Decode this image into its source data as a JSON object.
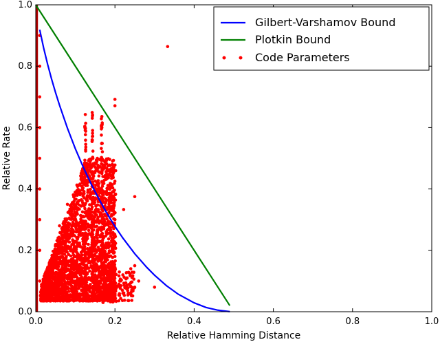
{
  "chart_data": {
    "type": "line",
    "xlabel": "Relative Hamming Distance",
    "ylabel": "Relative Rate",
    "xlim": [
      0.0,
      1.0
    ],
    "ylim": [
      0.0,
      1.0
    ],
    "x_ticks": [
      "0.0",
      "0.2",
      "0.4",
      "0.6",
      "0.8",
      "1.0"
    ],
    "y_ticks": [
      "0.0",
      "0.2",
      "0.4",
      "0.6",
      "0.8",
      "1.0"
    ],
    "grid": false,
    "legend_position": "top-right",
    "colors": {
      "gv": "#0000ff",
      "plotkin": "#007f00",
      "code": "#ff0000"
    },
    "series": [
      {
        "name": "Gilbert-Varshamov Bound",
        "style": "line",
        "x": [
          0.01,
          0.02,
          0.03,
          0.04,
          0.05,
          0.06,
          0.08,
          0.1,
          0.12,
          0.14,
          0.16,
          0.18,
          0.2,
          0.22,
          0.25,
          0.28,
          0.3,
          0.33,
          0.36,
          0.4,
          0.43,
          0.46,
          0.49
        ],
        "y": [
          0.919,
          0.859,
          0.806,
          0.758,
          0.714,
          0.673,
          0.598,
          0.531,
          0.471,
          0.416,
          0.366,
          0.32,
          0.278,
          0.24,
          0.189,
          0.145,
          0.119,
          0.085,
          0.057,
          0.029,
          0.014,
          0.005,
          0.0003
        ]
      },
      {
        "name": "Plotkin Bound",
        "style": "line",
        "x": [
          0.0,
          0.49
        ],
        "y": [
          1.0,
          0.02
        ]
      },
      {
        "name": "Code Parameters",
        "style": "scatter",
        "x": [
          0.333,
          0.2,
          0.2,
          0.167,
          0.167,
          0.143,
          0.143,
          0.125,
          0.125,
          0.25,
          0.222,
          0.3,
          0.25,
          0.2,
          0.18,
          0.15,
          0.12,
          0.1,
          0.08,
          0.06,
          0.05,
          0.04,
          0.03,
          0.02,
          0.015,
          0.14,
          0.16,
          0.22,
          0.24,
          0.21,
          0.19,
          0.23,
          0.26,
          0.17,
          0.13,
          0.11,
          0.09,
          0.07,
          0.05,
          0.04,
          0.03,
          0.02,
          0.01,
          0.01,
          0.01,
          0.01,
          0.01,
          0.01,
          0.01,
          0.01,
          0.01,
          0.25,
          0.22
        ],
        "y": [
          0.864,
          0.692,
          0.671,
          0.636,
          0.6,
          0.571,
          0.5,
          0.47,
          0.43,
          0.375,
          0.333,
          0.08,
          0.15,
          0.18,
          0.1,
          0.05,
          0.22,
          0.3,
          0.35,
          0.28,
          0.2,
          0.14,
          0.1,
          0.07,
          0.05,
          0.25,
          0.2,
          0.12,
          0.14,
          0.09,
          0.07,
          0.11,
          0.1,
          0.03,
          0.06,
          0.04,
          0.05,
          0.06,
          0.07,
          0.08,
          0.09,
          0.1,
          0.9,
          0.8,
          0.7,
          0.6,
          0.5,
          0.4,
          0.3,
          0.2,
          0.1,
          0.08,
          0.06
        ]
      }
    ]
  }
}
